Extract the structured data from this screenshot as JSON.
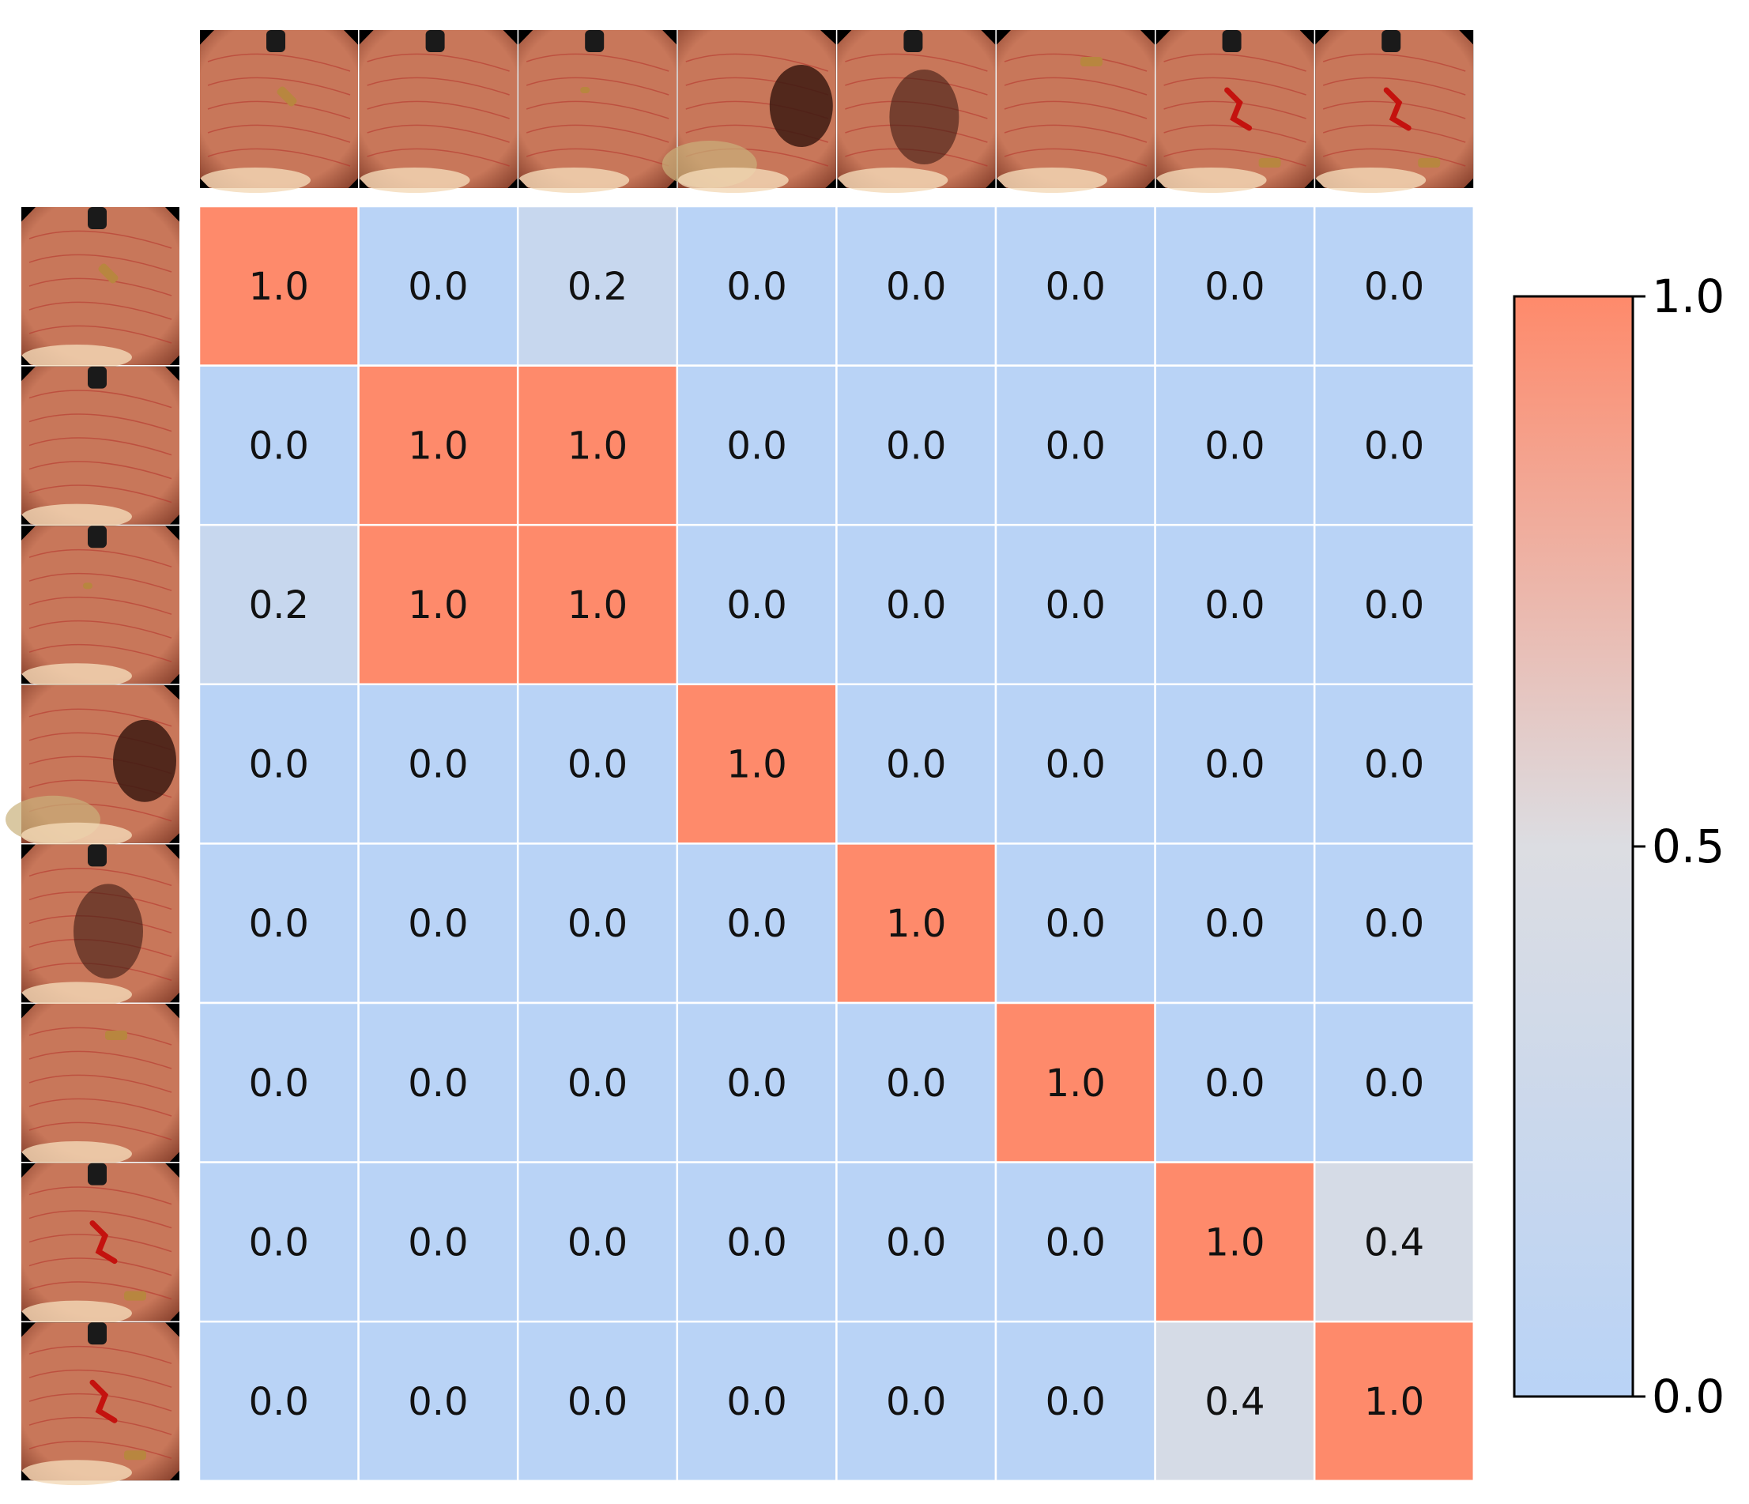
{
  "chart_data": {
    "type": "heatmap",
    "title": "",
    "xlabel": "",
    "ylabel": "",
    "rows": 8,
    "cols": 8,
    "row_headers": "endoscopy-thumbnail",
    "col_headers": "endoscopy-thumbnail",
    "value_format": "0.0",
    "matrix": [
      [
        1.0,
        0.0,
        0.2,
        0.0,
        0.0,
        0.0,
        0.0,
        0.0
      ],
      [
        0.0,
        1.0,
        1.0,
        0.0,
        0.0,
        0.0,
        0.0,
        0.0
      ],
      [
        0.2,
        1.0,
        1.0,
        0.0,
        0.0,
        0.0,
        0.0,
        0.0
      ],
      [
        0.0,
        0.0,
        0.0,
        1.0,
        0.0,
        0.0,
        0.0,
        0.0
      ],
      [
        0.0,
        0.0,
        0.0,
        0.0,
        1.0,
        0.0,
        0.0,
        0.0
      ],
      [
        0.0,
        0.0,
        0.0,
        0.0,
        0.0,
        1.0,
        0.0,
        0.0
      ],
      [
        0.0,
        0.0,
        0.0,
        0.0,
        0.0,
        0.0,
        1.0,
        0.4
      ],
      [
        0.0,
        0.0,
        0.0,
        0.0,
        0.0,
        0.0,
        0.4,
        1.0
      ]
    ],
    "colorbar": {
      "vmin": 0.0,
      "vmax": 1.0,
      "ticks": [
        0.0,
        0.5,
        1.0
      ],
      "tick_labels": [
        "0.0",
        "0.5",
        "1.0"
      ],
      "placement": "right"
    },
    "colormap": {
      "low": "#b9d3f6",
      "mid": "#dcdde2",
      "high": "#fe8a6b"
    },
    "grid_line_color": "#ffffff",
    "thumbnail_colors": {
      "mucosa": "#c8775a",
      "mucosa_dark": "#8e4631",
      "lumen": "#3d1a12",
      "highlight": "#f4d9b8",
      "vessel": "#b5322a",
      "blood": "#c4120e",
      "scope": "#1a1a1a",
      "device": "#b8863f"
    },
    "thumbnail_features": [
      {
        "scope": true,
        "device": "top-center",
        "blood": false,
        "lumen": "none"
      },
      {
        "scope": true,
        "device": "none",
        "blood": false,
        "lumen": "none"
      },
      {
        "scope": true,
        "device": "small",
        "blood": false,
        "lumen": "none"
      },
      {
        "scope": false,
        "device": "none",
        "blood": false,
        "lumen": "right"
      },
      {
        "scope": true,
        "device": "none",
        "blood": false,
        "lumen": "center"
      },
      {
        "scope": false,
        "device": "top-right",
        "blood": false,
        "lumen": "none"
      },
      {
        "scope": true,
        "device": "bottom-right",
        "blood": true,
        "lumen": "none"
      },
      {
        "scope": true,
        "device": "bottom-right",
        "blood": true,
        "lumen": "none"
      }
    ]
  }
}
